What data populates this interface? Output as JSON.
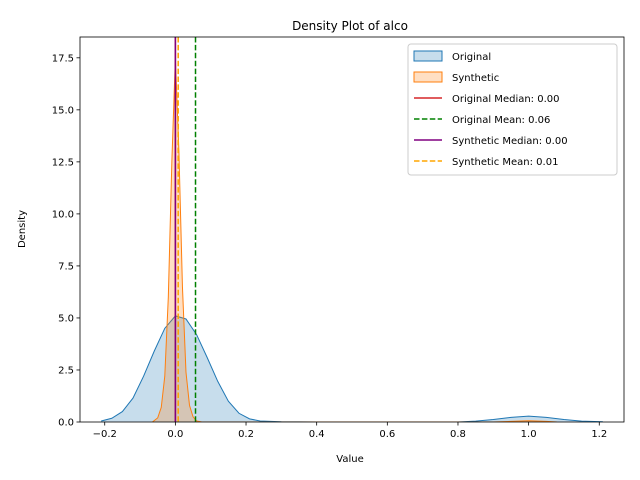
{
  "chart_data": {
    "type": "area",
    "title": "Density Plot of alco",
    "xlabel": "Value",
    "ylabel": "Density",
    "xlim": [
      -0.27,
      1.27
    ],
    "ylim": [
      0,
      18.5
    ],
    "xticks": [
      -0.2,
      0.0,
      0.2,
      0.4,
      0.6,
      0.8,
      1.0,
      1.2
    ],
    "xtick_labels": [
      "−0.2",
      "0.0",
      "0.2",
      "0.4",
      "0.6",
      "0.8",
      "1.0",
      "1.2"
    ],
    "yticks": [
      0.0,
      2.5,
      5.0,
      7.5,
      10.0,
      12.5,
      15.0,
      17.5
    ],
    "ytick_labels": [
      "0.0",
      "2.5",
      "5.0",
      "7.5",
      "10.0",
      "12.5",
      "15.0",
      "17.5"
    ],
    "grid": false,
    "legend_position": "top-right",
    "series": [
      {
        "name": "Original",
        "kind": "density",
        "color": "#1f77b4",
        "x": [
          -0.21,
          -0.18,
          -0.15,
          -0.12,
          -0.09,
          -0.06,
          -0.03,
          0.0,
          0.03,
          0.06,
          0.09,
          0.12,
          0.15,
          0.18,
          0.21,
          0.24,
          0.3,
          0.4,
          0.6,
          0.8,
          0.85,
          0.9,
          0.95,
          1.0,
          1.05,
          1.1,
          1.15,
          1.21
        ],
        "y": [
          0.05,
          0.18,
          0.5,
          1.15,
          2.2,
          3.4,
          4.5,
          5.1,
          4.95,
          4.2,
          3.1,
          1.95,
          1.0,
          0.42,
          0.15,
          0.05,
          0.01,
          0.0,
          0.0,
          0.0,
          0.04,
          0.12,
          0.22,
          0.28,
          0.22,
          0.12,
          0.04,
          0.01
        ]
      },
      {
        "name": "Synthetic",
        "kind": "density",
        "color": "#ff7f0e",
        "x": [
          -0.065,
          -0.05,
          -0.04,
          -0.03,
          -0.02,
          -0.01,
          0.0,
          0.01,
          0.02,
          0.03,
          0.04,
          0.05,
          0.06,
          0.075,
          0.1,
          0.3,
          0.6,
          0.9,
          0.95,
          1.0,
          1.05,
          1.08
        ],
        "y": [
          0.0,
          0.2,
          0.7,
          2.2,
          6.0,
          12.5,
          17.5,
          13.0,
          6.5,
          2.4,
          0.8,
          0.25,
          0.05,
          0.0,
          0.0,
          0.0,
          0.0,
          0.0,
          0.03,
          0.06,
          0.03,
          0.0
        ]
      }
    ],
    "reference_lines": [
      {
        "name": "Original Median: 0.00",
        "x": 0.0,
        "color": "#d62728",
        "style": "solid"
      },
      {
        "name": "Original Mean: 0.06",
        "x": 0.057,
        "color": "#008000",
        "style": "dashed"
      },
      {
        "name": "Synthetic Median: 0.00",
        "x": 0.0,
        "color": "#800080",
        "style": "solid"
      },
      {
        "name": "Synthetic Mean: 0.01",
        "x": 0.008,
        "color": "#ffa500",
        "style": "dashed"
      }
    ]
  }
}
